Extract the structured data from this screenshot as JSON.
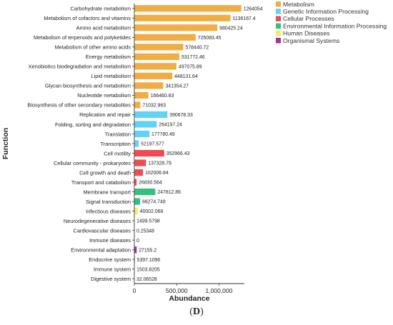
{
  "panel_label": {
    "open": "(",
    "letter": "D",
    "close": ")"
  },
  "chart_data": {
    "type": "bar",
    "orientation": "horizontal",
    "xlabel": "Abundance",
    "ylabel": "Function",
    "xlim": [
      0,
      1300000
    ],
    "xticks": [
      0,
      500000,
      1000000
    ],
    "xtick_labels": [
      "0",
      "500,000",
      "1,000,000"
    ],
    "grid": false,
    "legend_position": "top-right",
    "legend": [
      {
        "name": "Metabolism",
        "color": "#F0AD45"
      },
      {
        "name": "Genetic Information Processing",
        "color": "#62D2F5"
      },
      {
        "name": "Cellular Processes",
        "color": "#EE4B55"
      },
      {
        "name": "Environmental Information Processing",
        "color": "#36C07E"
      },
      {
        "name": "Human Diseases",
        "color": "#F1EE60"
      },
      {
        "name": "Organismal Systems",
        "color": "#A8308C"
      }
    ],
    "categories": [
      "Carbohydrate metabolism",
      "Metabolism of cofactors and vitamins",
      "Amino acid metabolism",
      "Metabolism of terpenoids and polyketides",
      "Metabolism of other amino acids",
      "Energy metabolism",
      "Xenobiotics biodegradation and metabolism",
      "Lipid metabolism",
      "Glycan biosynthesis and metabolism",
      "Nucleotide metabolism",
      "Biosynthesis of other secondary metabolites",
      "Replication and repair",
      "Folding, sorting and degradation",
      "Translation",
      "Transcription",
      "Cell motility",
      "Cellular community - prokaryotes",
      "Cell growth and death",
      "Transport and catabolism",
      "Membrane transport",
      "Signal transduction",
      "Infectious diseases",
      "Neurodegenerative diseases",
      "Cardiovascular diseases",
      "Immune diseases",
      "Environmental adaptation",
      "Endocrine system",
      "Immune system",
      "Digestive system"
    ],
    "values": [
      1264054,
      1136167.4,
      980425.24,
      725083.45,
      578440.72,
      531772.46,
      497075.89,
      448131.64,
      341354.27,
      166460.83,
      71032.963,
      390678.33,
      264197.24,
      177780.49,
      52197.577,
      352966.43,
      137328.79,
      102006.84,
      26830.564,
      247812.86,
      68274.748,
      40002.068,
      1499.5798,
      0.25348,
      0,
      27155.2,
      5397.1096,
      1503.8205,
      32.06528
    ],
    "value_labels": [
      "1264054",
      "1136167.4",
      "980425.24",
      "725083.45",
      "578440.72",
      "531772.46",
      "497075.89",
      "448131.64",
      "341354.27",
      "166460.83",
      "71032.963",
      "390678.33",
      "264197.24",
      "177780.49",
      "52197.577",
      "352966.43",
      "137328.79",
      "102006.84",
      "26830.564",
      "247812.86",
      "68274.748",
      "40002.068",
      "1499.5798",
      "0.25348",
      "0",
      "27155.2",
      "5397.1096",
      "1503.8205",
      "32.06528"
    ],
    "groups": [
      0,
      0,
      0,
      0,
      0,
      0,
      0,
      0,
      0,
      0,
      0,
      1,
      1,
      1,
      1,
      2,
      2,
      2,
      2,
      3,
      3,
      4,
      4,
      4,
      4,
      5,
      5,
      5,
      5
    ]
  }
}
